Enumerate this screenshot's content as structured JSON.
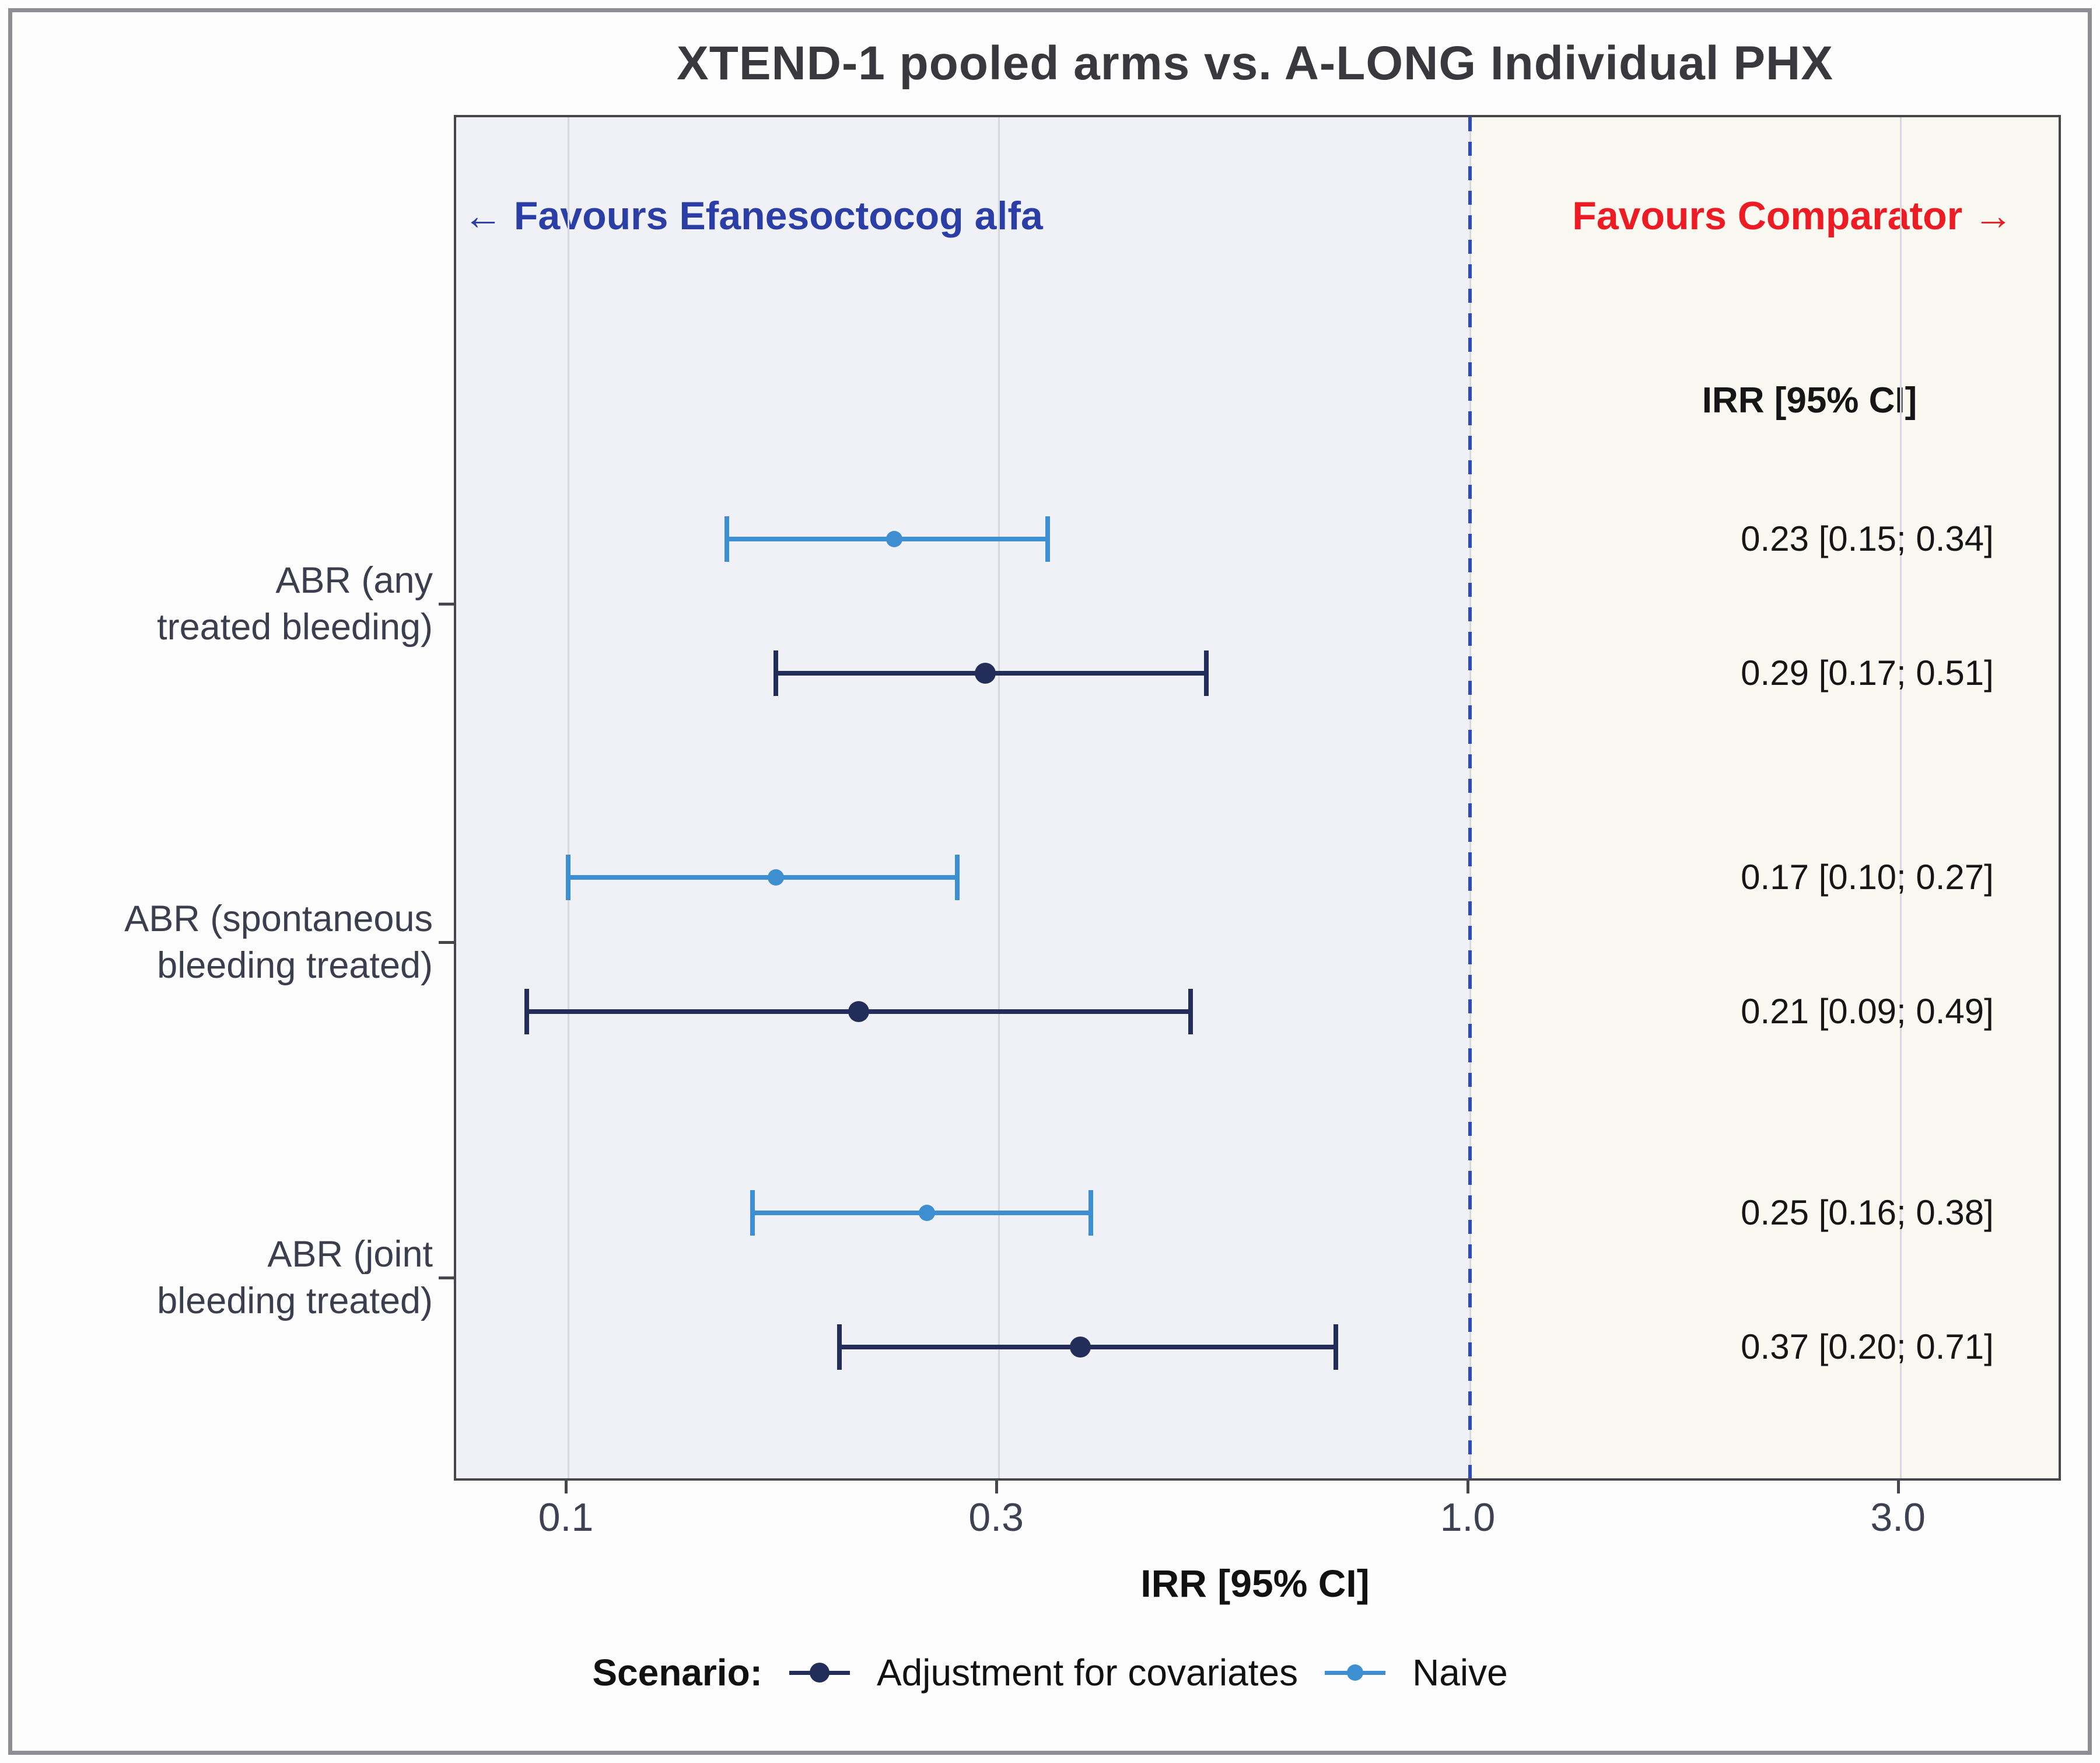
{
  "figure": {
    "annotations": {
      "favours_left": "← Favours Efanesoctocog alfa",
      "favours_right": "Favours Comparator →",
      "column_header": "IRR [95% CI]"
    },
    "colors": {
      "adjusted": "#232d5a",
      "naive": "#3e8ed2",
      "favours_left_text": "#2b3ea5",
      "favours_right_text": "#ed1c24",
      "reference_line": "#2d4bbe",
      "grid": "#d7d8dc",
      "panel_left_bg": "#f0f1f6",
      "panel_right_bg": "#f9f8f1",
      "axis_text": "#3f4052"
    }
  },
  "chart_data": {
    "type": "scatter",
    "variant": "forest-plot",
    "title": "XTEND-1 pooled arms vs. A-LONG Individual PHX",
    "xlabel": "IRR [95% CI]",
    "x_scale": "log10",
    "xlim": [
      0.075,
      4.6
    ],
    "x_ticks": [
      0.1,
      0.3,
      1.0,
      3.0
    ],
    "x_tick_labels": [
      "0.1",
      "0.3",
      "1.0",
      "3.0"
    ],
    "reference_line_x": 1.0,
    "grid": true,
    "legend": {
      "title": "Scenario:",
      "position": "bottom",
      "entries": [
        {
          "label": "Adjustment for covariates",
          "color": "#232d5a"
        },
        {
          "label": "Naive",
          "color": "#3e8ed2"
        }
      ]
    },
    "groups": [
      {
        "label": "ABR (any treated bleeding)",
        "label_lines": [
          "ABR (any",
          "treated bleeding)"
        ],
        "rows": [
          {
            "scenario": "Naive",
            "estimate": 0.23,
            "ci_low": 0.15,
            "ci_high": 0.34,
            "text": "0.23 [0.15; 0.34]"
          },
          {
            "scenario": "Adjustment for covariates",
            "estimate": 0.29,
            "ci_low": 0.17,
            "ci_high": 0.51,
            "text": "0.29 [0.17; 0.51]"
          }
        ]
      },
      {
        "label": "ABR (spontaneous bleeding treated)",
        "label_lines": [
          "ABR (spontaneous",
          "bleeding treated)"
        ],
        "rows": [
          {
            "scenario": "Naive",
            "estimate": 0.17,
            "ci_low": 0.1,
            "ci_high": 0.27,
            "text": "0.17 [0.10; 0.27]"
          },
          {
            "scenario": "Adjustment for covariates",
            "estimate": 0.21,
            "ci_low": 0.09,
            "ci_high": 0.49,
            "text": "0.21 [0.09; 0.49]"
          }
        ]
      },
      {
        "label": "ABR (joint bleeding treated)",
        "label_lines": [
          "ABR (joint",
          "bleeding treated)"
        ],
        "rows": [
          {
            "scenario": "Naive",
            "estimate": 0.25,
            "ci_low": 0.16,
            "ci_high": 0.38,
            "text": "0.25 [0.16; 0.38]"
          },
          {
            "scenario": "Adjustment for covariates",
            "estimate": 0.37,
            "ci_low": 0.2,
            "ci_high": 0.71,
            "text": "0.37 [0.20; 0.71]"
          }
        ]
      }
    ]
  }
}
